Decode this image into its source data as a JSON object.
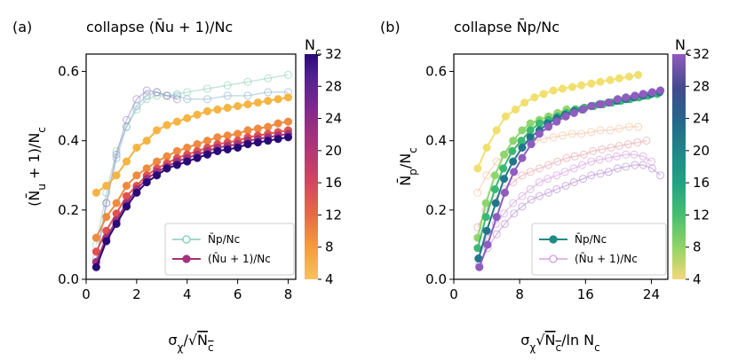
{
  "colorbar_colors": [
    "#f5b443",
    "#ef8a3e",
    "#e0524d",
    "#c93d6d",
    "#a3337c",
    "#7a2c89",
    "#4d218c",
    "#2a0a77"
  ],
  "colorbar_colors_b": [
    "#f1e06f",
    "#9bd86a",
    "#48c06f",
    "#23a482",
    "#1e8b87",
    "#24688a",
    "#3d4c88",
    "#6a3f95",
    "#8f5cbf"
  ],
  "chart_data": [
    {
      "type": "line",
      "panel_label": "(a)",
      "title": "collapse (N̄u + 1)/Nc",
      "xlabel": "σχ/√Nc",
      "ylabel": "(N̄u + 1)/Nc",
      "xlim": [
        0,
        8.3
      ],
      "ylim": [
        0,
        0.65
      ],
      "xticks": [
        0,
        2,
        4,
        6,
        8
      ],
      "yticks": [
        0.0,
        0.2,
        0.4,
        0.6
      ],
      "xtick_labels": [
        "0",
        "2",
        "4",
        "6",
        "8"
      ],
      "ytick_labels": [
        "0.0",
        "0.2",
        "0.4",
        "0.6"
      ],
      "colorbar": {
        "label": "Nc",
        "min": 4,
        "max": 32,
        "ticks": [
          4,
          8,
          12,
          16,
          20,
          24,
          28,
          32
        ],
        "ticks_text": [
          "4",
          "8",
          "12",
          "16",
          "20",
          "24",
          "28",
          "32"
        ],
        "colormap": "plasma-like (orange→purple)"
      },
      "legend": {
        "position": "lower right",
        "entries": [
          {
            "label": "N̄p/Nc",
            "marker": "hollow circle",
            "color": "#7fc9b5"
          },
          {
            "label": "(N̄u + 1)/Nc",
            "marker": "filled circle",
            "color": "#a3337c"
          }
        ]
      },
      "series_main": [
        {
          "nc": 4,
          "x": [
            0.4,
            0.8,
            1.2,
            1.6,
            2.0,
            2.4,
            2.8,
            3.2,
            3.6,
            4.0,
            4.4,
            4.8,
            5.2,
            5.6,
            6.0,
            6.4,
            6.8,
            7.2,
            7.6,
            8.0
          ],
          "y": [
            0.25,
            0.27,
            0.3,
            0.34,
            0.38,
            0.4,
            0.43,
            0.445,
            0.455,
            0.465,
            0.475,
            0.485,
            0.49,
            0.495,
            0.5,
            0.505,
            0.51,
            0.515,
            0.52,
            0.525
          ]
        },
        {
          "nc": 8,
          "x": [
            0.4,
            0.8,
            1.2,
            1.6,
            2.0,
            2.4,
            2.8,
            3.2,
            3.6,
            4.0,
            4.4,
            4.8,
            5.2,
            5.6,
            6.0,
            6.4,
            6.8,
            7.2,
            7.6,
            8.0
          ],
          "y": [
            0.12,
            0.18,
            0.22,
            0.27,
            0.3,
            0.32,
            0.34,
            0.355,
            0.37,
            0.38,
            0.39,
            0.4,
            0.41,
            0.415,
            0.42,
            0.43,
            0.435,
            0.44,
            0.45,
            0.455
          ]
        },
        {
          "nc": 12,
          "x": [
            0.4,
            0.8,
            1.2,
            1.6,
            2.0,
            2.4,
            2.8,
            3.2,
            3.6,
            4.0,
            4.4,
            4.8,
            5.2,
            5.6,
            6.0,
            6.4,
            6.8,
            7.2,
            7.6,
            8.0
          ],
          "y": [
            0.08,
            0.14,
            0.19,
            0.24,
            0.27,
            0.3,
            0.32,
            0.335,
            0.35,
            0.36,
            0.37,
            0.38,
            0.39,
            0.395,
            0.4,
            0.41,
            0.415,
            0.42,
            0.425,
            0.43
          ]
        },
        {
          "nc": 20,
          "x": [
            0.4,
            0.8,
            1.2,
            1.6,
            2.0,
            2.4,
            2.8,
            3.2,
            3.6,
            4.0,
            4.4,
            4.8,
            5.2,
            5.6,
            6.0,
            6.4,
            6.8,
            7.2,
            7.6,
            8.0
          ],
          "y": [
            0.05,
            0.12,
            0.17,
            0.22,
            0.26,
            0.29,
            0.31,
            0.325,
            0.34,
            0.35,
            0.36,
            0.37,
            0.38,
            0.385,
            0.39,
            0.4,
            0.405,
            0.41,
            0.415,
            0.42
          ]
        },
        {
          "nc": 32,
          "x": [
            0.4,
            0.8,
            1.2,
            1.6,
            2.0,
            2.4,
            2.8,
            3.2,
            3.6,
            4.0,
            4.4,
            4.8,
            5.2,
            5.6,
            6.0,
            6.4,
            6.8,
            7.2,
            7.6,
            8.0
          ],
          "y": [
            0.035,
            0.11,
            0.16,
            0.21,
            0.25,
            0.28,
            0.3,
            0.32,
            0.33,
            0.34,
            0.35,
            0.36,
            0.37,
            0.375,
            0.38,
            0.39,
            0.395,
            0.4,
            0.405,
            0.41
          ]
        }
      ],
      "series_faint": [
        {
          "nc": 8,
          "x": [
            0.4,
            0.8,
            1.2,
            1.6,
            2.0,
            2.4,
            2.8,
            3.2,
            3.6,
            4.0,
            4.8,
            5.6,
            6.4,
            7.2,
            8.0
          ],
          "y": [
            0.1,
            0.25,
            0.37,
            0.44,
            0.49,
            0.52,
            0.53,
            0.53,
            0.535,
            0.54,
            0.55,
            0.56,
            0.57,
            0.58,
            0.59
          ]
        },
        {
          "nc": 16,
          "x": [
            0.4,
            0.8,
            1.2,
            1.6,
            2.0,
            2.4,
            2.8,
            3.2,
            3.6,
            4.0,
            4.8,
            5.6,
            6.4,
            7.2,
            8.0
          ],
          "y": [
            0.06,
            0.22,
            0.35,
            0.44,
            0.5,
            0.53,
            0.54,
            0.53,
            0.53,
            0.52,
            0.52,
            0.53,
            0.53,
            0.54,
            0.54
          ]
        },
        {
          "nc": 28,
          "x": [
            0.4,
            0.8,
            1.2,
            1.6,
            2.0,
            2.4,
            2.8,
            3.2,
            3.6
          ],
          "y": [
            0.05,
            0.22,
            0.36,
            0.46,
            0.52,
            0.545,
            0.54,
            0.53,
            0.52
          ]
        }
      ]
    },
    {
      "type": "line",
      "panel_label": "(b)",
      "title": "collapse N̄p/Nc",
      "xlabel": "σχ√Nc/ln Nc",
      "ylabel": "N̄p/Nc",
      "xlim": [
        0,
        26
      ],
      "ylim": [
        0,
        0.65
      ],
      "xticks": [
        0,
        8,
        16,
        24
      ],
      "yticks": [
        0.0,
        0.2,
        0.4,
        0.6
      ],
      "xtick_labels": [
        "0",
        "8",
        "16",
        "24"
      ],
      "ytick_labels": [
        "0.0",
        "0.2",
        "0.4",
        "0.6"
      ],
      "colorbar": {
        "label": "Nc",
        "min": 4,
        "max": 32,
        "ticks": [
          4,
          8,
          12,
          16,
          20,
          24,
          28,
          32
        ],
        "ticks_text": [
          "4",
          "8",
          "12",
          "16",
          "20",
          "24",
          "28",
          "32"
        ],
        "colormap": "viridis-like (yellow→green→purple)"
      },
      "legend": {
        "position": "lower right",
        "entries": [
          {
            "label": "N̄p/Nc",
            "marker": "filled circle",
            "color": "#1e8b87"
          },
          {
            "label": "(N̄u + 1)/Nc",
            "marker": "hollow circle",
            "color": "#d59ae0"
          }
        ]
      },
      "series_main": [
        {
          "nc": 4,
          "x": [
            2.9,
            4.0,
            5.2,
            6.3,
            7.5,
            8.6,
            9.8,
            10.9,
            12.1,
            13.2,
            14.4,
            15.5,
            16.7,
            17.8,
            19.0,
            20.1,
            21.3,
            22.4
          ],
          "y": [
            0.32,
            0.38,
            0.43,
            0.47,
            0.49,
            0.51,
            0.525,
            0.535,
            0.545,
            0.55,
            0.555,
            0.56,
            0.565,
            0.57,
            0.575,
            0.58,
            0.585,
            0.59
          ]
        },
        {
          "nc": 8,
          "x": [
            2.9,
            3.9,
            5.0,
            6.1,
            7.2,
            8.3,
            9.3,
            10.4,
            11.5,
            12.6,
            13.7,
            14.7,
            15.8,
            16.9,
            18.0,
            19.1,
            20.1,
            21.2,
            22.3,
            23.4
          ],
          "y": [
            0.12,
            0.22,
            0.3,
            0.36,
            0.4,
            0.43,
            0.45,
            0.46,
            0.47,
            0.48,
            0.49,
            0.49,
            0.495,
            0.5,
            0.505,
            0.51,
            0.515,
            0.52,
            0.525,
            0.53
          ]
        },
        {
          "nc": 12,
          "x": [
            2.9,
            3.9,
            5.0,
            6.0,
            7.1,
            8.2,
            9.3,
            10.4,
            11.5,
            12.6,
            13.7,
            14.8,
            15.9,
            17.0,
            18.1,
            19.2,
            20.3,
            21.4,
            22.5,
            23.6,
            24.7
          ],
          "y": [
            0.09,
            0.18,
            0.26,
            0.32,
            0.37,
            0.4,
            0.43,
            0.45,
            0.46,
            0.47,
            0.48,
            0.49,
            0.495,
            0.5,
            0.505,
            0.51,
            0.515,
            0.52,
            0.525,
            0.53,
            0.535
          ]
        },
        {
          "nc": 20,
          "x": [
            3.0,
            4.0,
            5.1,
            6.1,
            7.2,
            8.3,
            9.3,
            10.4,
            11.4,
            12.5,
            13.5,
            14.6,
            15.6,
            16.7,
            17.7,
            18.8,
            19.8,
            20.9,
            21.9,
            23.0,
            24.0,
            25.0
          ],
          "y": [
            0.06,
            0.14,
            0.22,
            0.29,
            0.34,
            0.38,
            0.41,
            0.43,
            0.45,
            0.465,
            0.475,
            0.485,
            0.49,
            0.5,
            0.505,
            0.51,
            0.515,
            0.52,
            0.525,
            0.53,
            0.535,
            0.54
          ]
        },
        {
          "nc": 32,
          "x": [
            3.1,
            4.1,
            5.2,
            6.2,
            7.3,
            8.3,
            9.4,
            10.4,
            11.5,
            12.5,
            13.6,
            14.6,
            15.7,
            16.7,
            17.8,
            18.8,
            19.9,
            20.9,
            22.0,
            23.0,
            24.1,
            25.1
          ],
          "y": [
            0.035,
            0.1,
            0.18,
            0.25,
            0.31,
            0.35,
            0.39,
            0.42,
            0.44,
            0.455,
            0.47,
            0.48,
            0.49,
            0.5,
            0.505,
            0.51,
            0.52,
            0.525,
            0.53,
            0.535,
            0.54,
            0.545
          ]
        }
      ],
      "series_faint": [
        {
          "nc": 4,
          "x": [
            2.9,
            4.0,
            5.2,
            6.3,
            7.5,
            8.6,
            9.8,
            10.9,
            12.1,
            13.2,
            14.4,
            15.5,
            16.7,
            17.8,
            19.0,
            20.1,
            21.3,
            22.4
          ],
          "y": [
            0.25,
            0.3,
            0.34,
            0.36,
            0.38,
            0.39,
            0.4,
            0.405,
            0.41,
            0.415,
            0.42,
            0.42,
            0.425,
            0.43,
            0.43,
            0.435,
            0.44,
            0.44
          ]
        },
        {
          "nc": 8,
          "x": [
            2.9,
            3.9,
            5.0,
            6.1,
            7.2,
            8.3,
            9.3,
            10.4,
            11.5,
            12.6,
            13.7,
            14.7,
            15.8,
            16.9,
            18.0,
            19.1,
            20.1,
            21.2,
            22.3,
            23.4
          ],
          "y": [
            0.15,
            0.2,
            0.23,
            0.26,
            0.28,
            0.3,
            0.31,
            0.32,
            0.33,
            0.34,
            0.35,
            0.355,
            0.36,
            0.37,
            0.375,
            0.38,
            0.385,
            0.39,
            0.395,
            0.4
          ]
        },
        {
          "nc": 16,
          "x": [
            3.0,
            4.0,
            5.1,
            6.1,
            7.2,
            8.3,
            9.3,
            10.4,
            11.4,
            12.5,
            13.5,
            14.6,
            15.6,
            16.7,
            17.7,
            18.8,
            19.8,
            20.9,
            21.9,
            23.0,
            24.0
          ],
          "y": [
            0.06,
            0.12,
            0.16,
            0.19,
            0.22,
            0.24,
            0.26,
            0.28,
            0.29,
            0.3,
            0.31,
            0.32,
            0.33,
            0.34,
            0.345,
            0.35,
            0.355,
            0.36,
            0.36,
            0.355,
            0.34
          ]
        },
        {
          "nc": 28,
          "x": [
            3.1,
            4.1,
            5.2,
            6.2,
            7.3,
            8.3,
            9.4,
            10.4,
            11.5,
            12.5,
            13.6,
            14.6,
            15.7,
            16.7,
            17.8,
            18.8,
            19.9,
            20.9,
            22.0,
            23.0,
            24.1,
            25.1
          ],
          "y": [
            0.04,
            0.09,
            0.13,
            0.16,
            0.19,
            0.21,
            0.23,
            0.24,
            0.25,
            0.26,
            0.27,
            0.28,
            0.29,
            0.3,
            0.305,
            0.31,
            0.32,
            0.325,
            0.33,
            0.33,
            0.32,
            0.3
          ]
        }
      ]
    }
  ]
}
